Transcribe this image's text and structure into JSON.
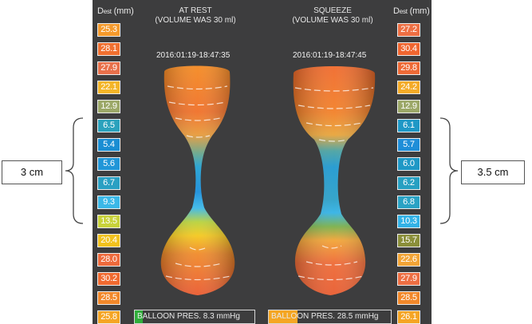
{
  "left_header": {
    "main": "D",
    "sub": "est",
    "unit": " (mm)"
  },
  "right_header": {
    "main": "D",
    "sub": "est",
    "unit": " (mm)"
  },
  "left_values": [
    {
      "v": "25.3",
      "c": "#f59a2c"
    },
    {
      "v": "28.1",
      "c": "#f07030"
    },
    {
      "v": "27.9",
      "c": "#e8704a"
    },
    {
      "v": "22.1",
      "c": "#f4b528"
    },
    {
      "v": "12.9",
      "c": "#9ca868"
    },
    {
      "v": "6.5",
      "c": "#2ba2bd"
    },
    {
      "v": "5.4",
      "c": "#1a8ed3"
    },
    {
      "v": "5.6",
      "c": "#2196d8"
    },
    {
      "v": "6.7",
      "c": "#2aa0c3"
    },
    {
      "v": "9.3",
      "c": "#3bb8e8"
    },
    {
      "v": "13.5",
      "c": "#c8d23a"
    },
    {
      "v": "20.4",
      "c": "#f2c21e"
    },
    {
      "v": "28.0",
      "c": "#ee6a3c"
    },
    {
      "v": "30.2",
      "c": "#f06a30"
    },
    {
      "v": "28.5",
      "c": "#f2882a"
    },
    {
      "v": "25.8",
      "c": "#f5a524"
    }
  ],
  "right_values": [
    {
      "v": "27.2",
      "c": "#ee6f43"
    },
    {
      "v": "30.4",
      "c": "#f06630"
    },
    {
      "v": "29.8",
      "c": "#ee6a36"
    },
    {
      "v": "24.2",
      "c": "#f4ab28"
    },
    {
      "v": "12.9",
      "c": "#9ca868"
    },
    {
      "v": "6.1",
      "c": "#1f98c6"
    },
    {
      "v": "5.7",
      "c": "#1f8ed8"
    },
    {
      "v": "6.0",
      "c": "#1f98c6"
    },
    {
      "v": "6.2",
      "c": "#27a0c2"
    },
    {
      "v": "6.8",
      "c": "#2aa2c4"
    },
    {
      "v": "10.3",
      "c": "#33b2e6"
    },
    {
      "v": "15.7",
      "c": "#8b8f3a"
    },
    {
      "v": "22.6",
      "c": "#f2a436"
    },
    {
      "v": "27.9",
      "c": "#ee6f43"
    },
    {
      "v": "28.5",
      "c": "#f2882a"
    },
    {
      "v": "26.1",
      "c": "#f5a524"
    }
  ],
  "left_title": {
    "line1": "AT REST",
    "line2": "(VOLUME WAS 30 ml)"
  },
  "right_title": {
    "line1": "SQUEEZE",
    "line2": "(VOLUME WAS 30 ml)"
  },
  "left_timestamp": "2016:01:19-18:47:35",
  "right_timestamp": "2016:01:19-18:47:45",
  "left_pressure": {
    "label": "BALLOON PRES. 8.3 mmHg",
    "value_mmHg": 8.3,
    "fill_color": "#2fae3a"
  },
  "right_pressure": {
    "label": "BALLOON PRES. 28.5 mmHg",
    "value_mmHg": 28.5,
    "fill_color": "#f5a623"
  },
  "left_callout": "3 cm",
  "right_callout": "3.5 cm",
  "colors": {
    "panel_bg": "#3d3d3e",
    "cell_border": "#ececec"
  }
}
